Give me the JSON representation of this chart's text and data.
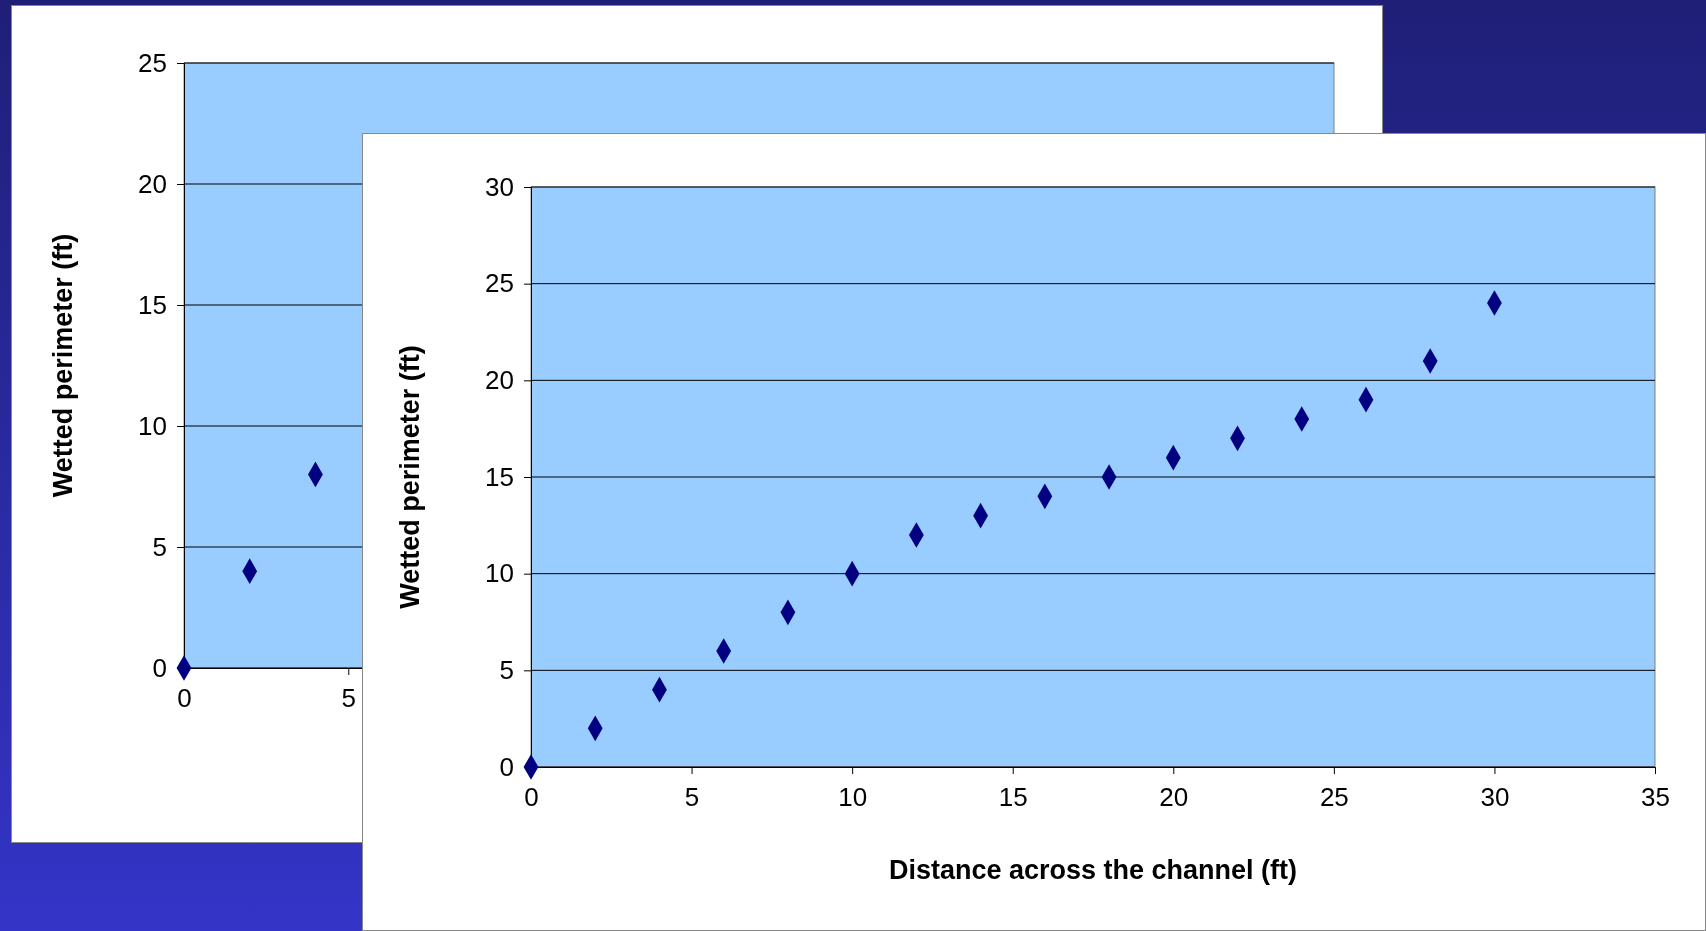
{
  "chart_data": [
    {
      "type": "scatter",
      "ylabel": "Wetted perimeter (ft)",
      "x": [
        0,
        2,
        4
      ],
      "values": [
        0,
        4,
        8
      ],
      "color": "#000080",
      "marker": "diamond",
      "xlim": [
        0,
        35
      ],
      "xticks": [
        0,
        5
      ],
      "ylim": [
        0,
        25
      ],
      "yticks": [
        0,
        5,
        10,
        15,
        20,
        25
      ],
      "grid": "y"
    },
    {
      "type": "scatter",
      "xlabel": "Distance across the channel (ft)",
      "ylabel": "Wetted perimeter (ft)",
      "x": [
        0,
        2,
        4,
        6,
        8,
        10,
        12,
        14,
        16,
        18,
        20,
        22,
        24,
        26,
        28,
        30
      ],
      "values": [
        0,
        2,
        4,
        6,
        8,
        10,
        12,
        13,
        14,
        15,
        16,
        17,
        18,
        19,
        21,
        24
      ],
      "color": "#000080",
      "marker": "diamond",
      "xlim": [
        0,
        35
      ],
      "xticks": [
        0,
        5,
        10,
        15,
        20,
        25,
        30,
        35
      ],
      "ylim": [
        0,
        30
      ],
      "yticks": [
        0,
        5,
        10,
        15,
        20,
        25,
        30
      ],
      "grid": "y"
    }
  ]
}
